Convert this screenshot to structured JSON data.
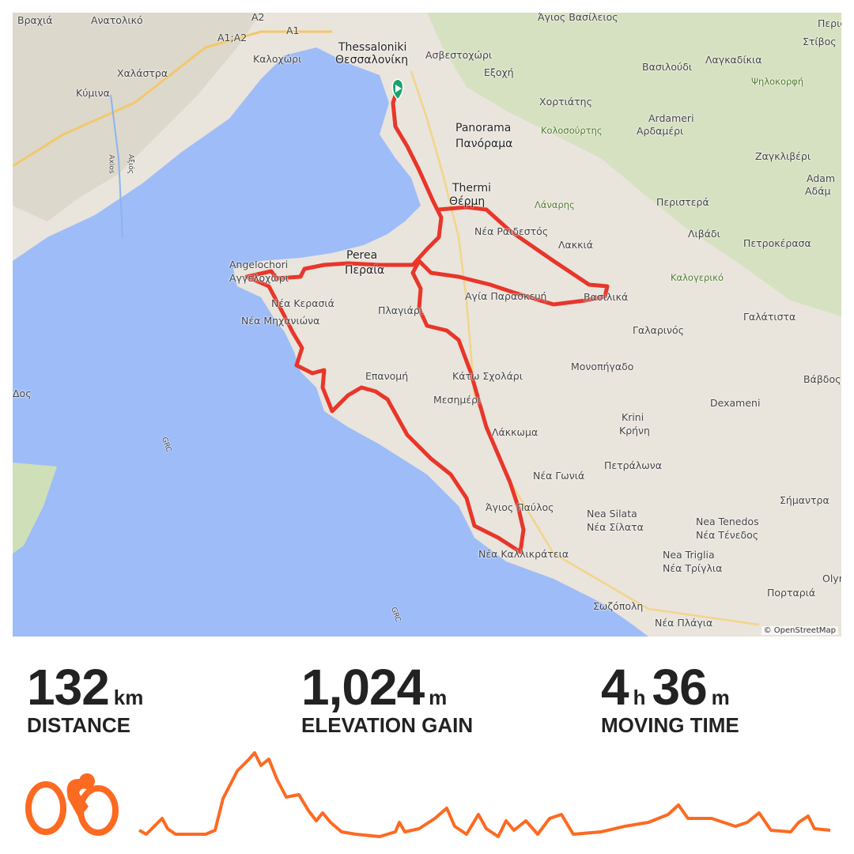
{
  "map": {
    "attribution": "© OpenStreetMap",
    "route_color": "#e8362a",
    "water_color": "#9ebcf8",
    "start_marker_color": "#1aa36b",
    "labels": [
      {
        "text": "Βραχιά"
      },
      {
        "text": "Ανατολικό"
      },
      {
        "text": "A2"
      },
      {
        "text": "A1;A2"
      },
      {
        "text": "A1"
      },
      {
        "text": "Thessaloniki"
      },
      {
        "text": "Θεσσαλονίκη"
      },
      {
        "text": "Καλοχώρι"
      },
      {
        "text": "Χαλάστρα"
      },
      {
        "text": "Κύμινα"
      },
      {
        "text": "Άγιος Βασίλειος"
      },
      {
        "text": "Ασβεστοχώρι"
      },
      {
        "text": "Εξοχή"
      },
      {
        "text": "Βασιλούδι"
      },
      {
        "text": "Λαγκαδίκια"
      },
      {
        "text": "Στίβος"
      },
      {
        "text": "Ψηλοκορφή"
      },
      {
        "text": "Χορτιάτης"
      },
      {
        "text": "Κολοσούρτης"
      },
      {
        "text": "Panorama"
      },
      {
        "text": "Πανόραμα"
      },
      {
        "text": "Ardameri"
      },
      {
        "text": "Αρδαμέρι"
      },
      {
        "text": "Ζαγκλιβέρι"
      },
      {
        "text": "Adam"
      },
      {
        "text": "Αδάμ"
      },
      {
        "text": "Thermi"
      },
      {
        "text": "Θέρμη"
      },
      {
        "text": "Λάναρης"
      },
      {
        "text": "Περιστερά"
      },
      {
        "text": "Νέα Ραιδεστός"
      },
      {
        "text": "Λακκιά"
      },
      {
        "text": "Λιβάδι"
      },
      {
        "text": "Πετροκέρασα"
      },
      {
        "text": "Καλογερικό"
      },
      {
        "text": "Perea"
      },
      {
        "text": "Περαία"
      },
      {
        "text": "Angelochori"
      },
      {
        "text": "Αγγελοχώρι"
      },
      {
        "text": "Νέα Κερασιά"
      },
      {
        "text": "Νέα Μηχανιώνα"
      },
      {
        "text": "Πλαγιάρι"
      },
      {
        "text": "Αγία Παρασκευή"
      },
      {
        "text": "Βασιλικά"
      },
      {
        "text": "Γαλαρινός"
      },
      {
        "text": "Γαλάτιστα"
      },
      {
        "text": "Επανομή"
      },
      {
        "text": "Κάτω Σχολάρι"
      },
      {
        "text": "Μονοπήγαδο"
      },
      {
        "text": "Μεσημέρι"
      },
      {
        "text": "Βάβδος"
      },
      {
        "text": "Dexameni"
      },
      {
        "text": "Λάκκωμα"
      },
      {
        "text": "Krini"
      },
      {
        "text": "Κρήνη"
      },
      {
        "text": "Πετράλωνα"
      },
      {
        "text": "Νέα Γωνιά"
      },
      {
        "text": "Σήμαντρα"
      },
      {
        "text": "Άγιος Παύλος"
      },
      {
        "text": "Nea Silata"
      },
      {
        "text": "Νέα Σίλατα"
      },
      {
        "text": "Nea Tenedos"
      },
      {
        "text": "Νέα Τένεδος"
      },
      {
        "text": "Νέα Καλλικράτεια"
      },
      {
        "text": "Nea Triglia"
      },
      {
        "text": "Νέα Τρίγλια"
      },
      {
        "text": "Olynthos"
      },
      {
        "text": "Πορταριά"
      },
      {
        "text": "Σωζόπολη"
      },
      {
        "text": "Νέα Πλάγια"
      },
      {
        "text": "GRC"
      },
      {
        "text": "GRC"
      },
      {
        "text": "Axios"
      },
      {
        "text": "Αξιός"
      },
      {
        "text": "Περιστέρι"
      },
      {
        "text": "Δος"
      }
    ]
  },
  "stats": {
    "distance": {
      "value": "132",
      "unit": "km",
      "label": "DISTANCE"
    },
    "elevation": {
      "value": "1,024",
      "unit": "m",
      "label": "ELEVATION GAIN"
    },
    "time": {
      "hours": "4",
      "hours_unit": "h",
      "minutes": "36",
      "minutes_unit": "m",
      "label": "MOVING TIME"
    }
  },
  "profile": {
    "color": "#fc6a21",
    "activity_icon": "cyclist-icon"
  }
}
